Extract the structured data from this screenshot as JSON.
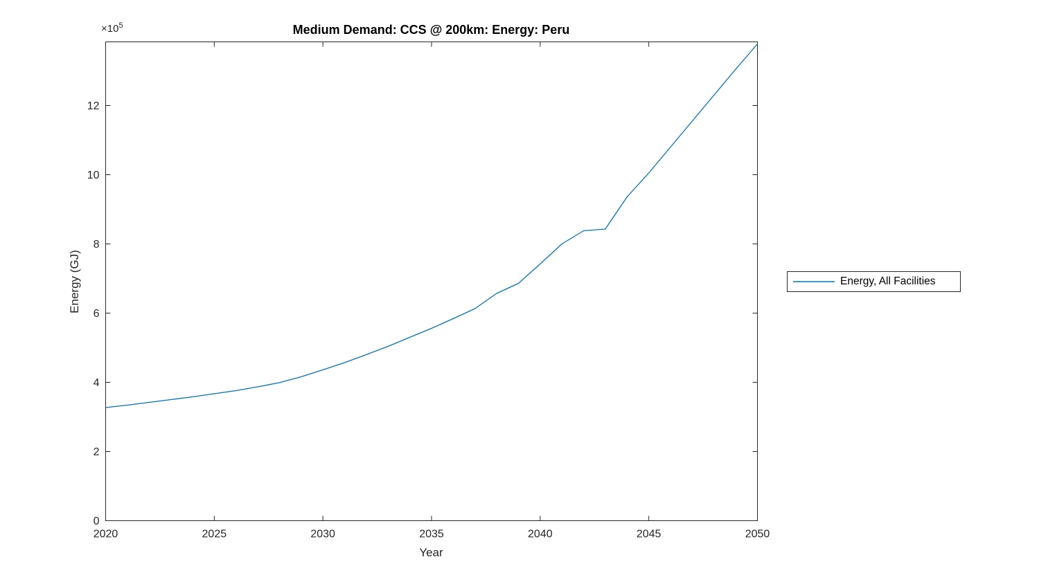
{
  "figure": {
    "title": "Medium Demand: CCS @ 200km: Energy: Peru",
    "xlabel": "Year",
    "ylabel": "Energy (GJ)",
    "offset_text": {
      "base": "×10",
      "exponent": "5"
    },
    "legend": {
      "label": "Energy, All Facilities",
      "position": "right-outside"
    }
  },
  "colors": {
    "line": "#0072BD",
    "axis": "#262626",
    "tick_label": "#262626",
    "title": "#000000",
    "background": "#ffffff"
  },
  "chart_data": {
    "type": "line",
    "title": "Medium Demand: CCS @ 200km: Energy: Peru",
    "xlabel": "Year",
    "ylabel": "Energy (GJ)",
    "y_offset_multiplier_text": "×10^5",
    "grid": false,
    "box": true,
    "legend_entries": [
      "Energy, All Facilities"
    ],
    "legend_position": "right-outside",
    "xlim": [
      2020,
      2050
    ],
    "ylim": [
      0,
      1384000
    ],
    "xtick_values": [
      2020,
      2025,
      2030,
      2035,
      2040,
      2045,
      2050
    ],
    "xtick_labels": [
      "2020",
      "2025",
      "2030",
      "2035",
      "2040",
      "2045",
      "2050"
    ],
    "ytick_values": [
      0,
      200000,
      400000,
      600000,
      800000,
      1000000,
      1200000
    ],
    "ytick_labels": [
      "0",
      "2",
      "4",
      "6",
      "8",
      "10",
      "12"
    ],
    "series": [
      {
        "name": "Energy, All Facilities",
        "x": [
          2020,
          2021,
          2022,
          2023,
          2024,
          2025,
          2026,
          2027,
          2028,
          2029,
          2030,
          2031,
          2032,
          2033,
          2034,
          2035,
          2036,
          2037,
          2038,
          2039,
          2040,
          2041,
          2042,
          2043,
          2044,
          2045,
          2046,
          2047,
          2048,
          2049,
          2050
        ],
        "y": [
          327000,
          334000,
          342000,
          350000,
          358000,
          367000,
          376000,
          387000,
          399000,
          416000,
          436000,
          457000,
          480000,
          504000,
          530000,
          556000,
          584000,
          613000,
          657000,
          686000,
          742000,
          800000,
          838000,
          843000,
          936000,
          1005000,
          1080000,
          1155000,
          1230000,
          1305000,
          1378000
        ]
      }
    ]
  }
}
